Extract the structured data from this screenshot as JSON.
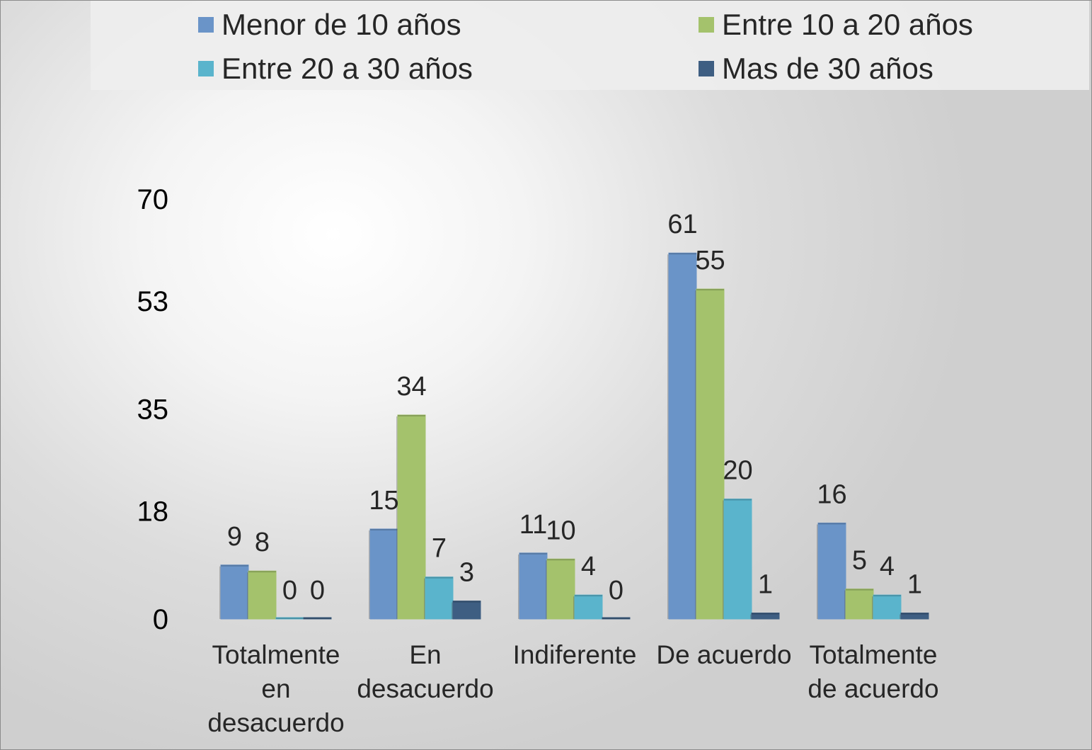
{
  "chart_data": {
    "type": "bar",
    "categories": [
      [
        "Totalmente",
        "en",
        "desacuerdo"
      ],
      [
        "En",
        "desacuerdo"
      ],
      [
        "Indiferente"
      ],
      [
        "De acuerdo"
      ],
      [
        "Totalmente",
        "de acuerdo"
      ]
    ],
    "series": [
      {
        "name": "Menor de 10 años",
        "color": "#6a94c8",
        "values": [
          9,
          15,
          11,
          61,
          16
        ]
      },
      {
        "name": "Entre 10 a 20 años",
        "color": "#a4c26c",
        "values": [
          8,
          34,
          10,
          55,
          5
        ]
      },
      {
        "name": "Entre 20 a 30 años",
        "color": "#5ab4cc",
        "values": [
          0,
          7,
          4,
          20,
          4
        ]
      },
      {
        "name": "Mas de 30 años",
        "color": "#3e5e82",
        "values": [
          0,
          3,
          0,
          1,
          1
        ]
      }
    ],
    "y_ticks": [
      "0",
      "18",
      "35",
      "53",
      "70"
    ],
    "ylim": [
      0,
      70
    ],
    "grid": false,
    "legend_position": "top",
    "data_labels": true
  }
}
